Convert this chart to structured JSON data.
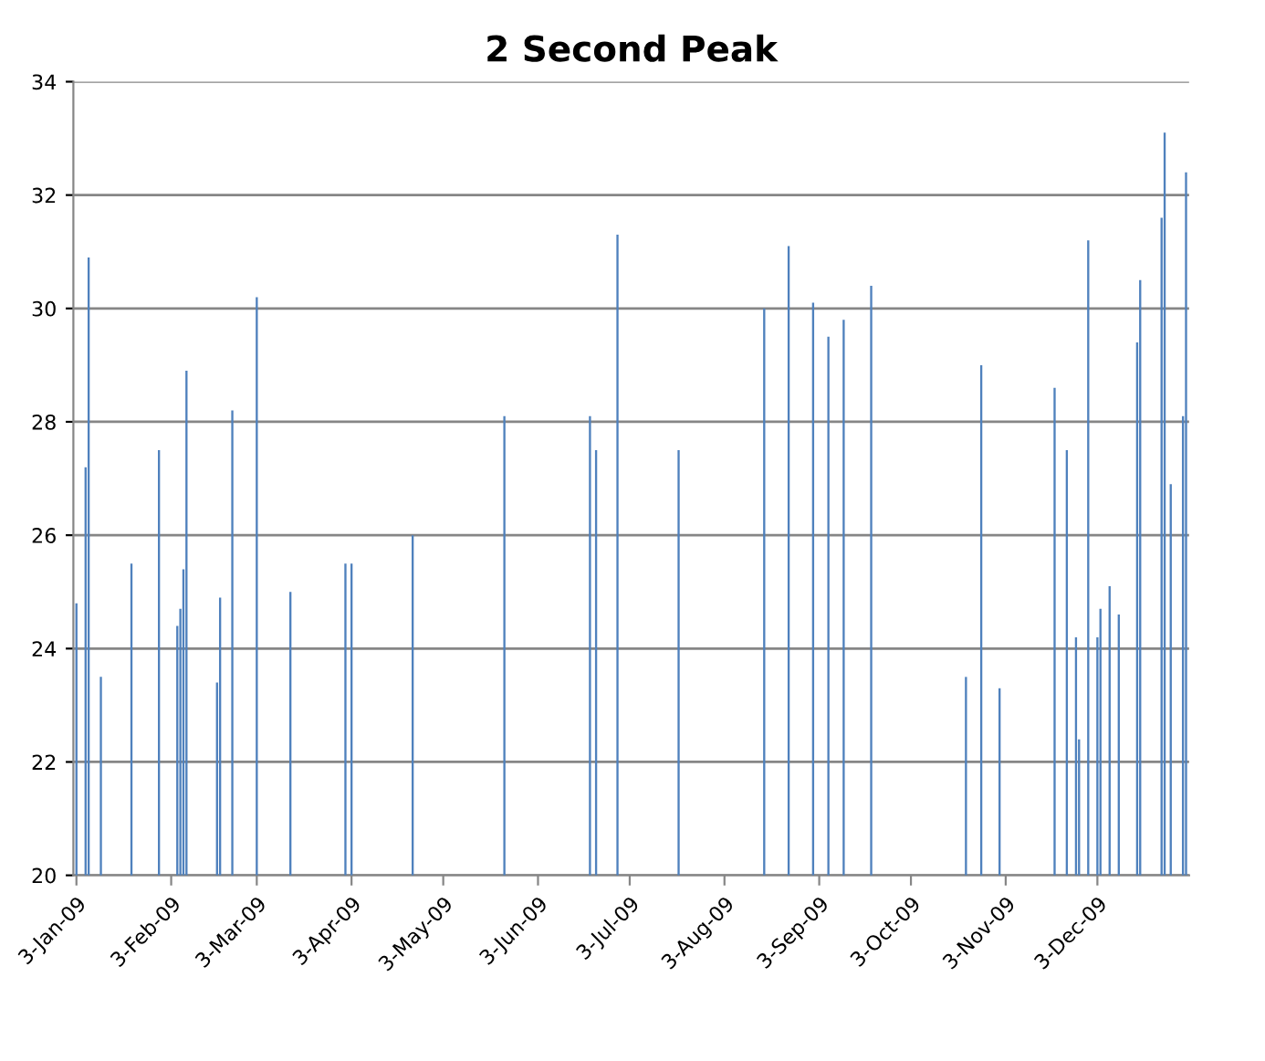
{
  "chart_data": {
    "type": "bar",
    "title": "2 Second Peak",
    "x": [
      "2009-01-03",
      "2009-01-06",
      "2009-01-07",
      "2009-01-11",
      "2009-01-21",
      "2009-01-30",
      "2009-02-05",
      "2009-02-06",
      "2009-02-07",
      "2009-02-08",
      "2009-02-18",
      "2009-02-19",
      "2009-02-23",
      "2009-03-03",
      "2009-03-14",
      "2009-04-01",
      "2009-04-03",
      "2009-04-23",
      "2009-05-23",
      "2009-06-20",
      "2009-06-22",
      "2009-06-29",
      "2009-07-19",
      "2009-08-16",
      "2009-08-24",
      "2009-09-01",
      "2009-09-06",
      "2009-09-11",
      "2009-09-20",
      "2009-10-21",
      "2009-10-26",
      "2009-11-01",
      "2009-11-19",
      "2009-11-23",
      "2009-11-26",
      "2009-11-27",
      "2009-11-30",
      "2009-12-03",
      "2009-12-04",
      "2009-12-07",
      "2009-12-10",
      "2009-12-16",
      "2009-12-17",
      "2009-12-24",
      "2009-12-25",
      "2009-12-27",
      "2009-12-31",
      "2010-01-01"
    ],
    "values": [
      24.8,
      27.2,
      30.9,
      23.5,
      25.5,
      27.5,
      24.4,
      24.7,
      25.4,
      28.9,
      23.4,
      24.9,
      28.2,
      30.2,
      25.0,
      25.5,
      25.5,
      26.0,
      28.1,
      28.1,
      27.5,
      31.3,
      27.5,
      30.0,
      31.1,
      30.1,
      29.5,
      29.8,
      30.4,
      23.5,
      29.0,
      23.3,
      28.6,
      27.5,
      24.2,
      22.4,
      31.2,
      24.2,
      24.7,
      25.1,
      24.6,
      29.4,
      30.5,
      31.6,
      33.1,
      26.9,
      28.1,
      32.4
    ],
    "color": "#4f81bd",
    "xlim": [
      "2009-01-02",
      "2010-01-02"
    ],
    "xticks": [
      {
        "value": "2009-01-03",
        "label": "3-Jan-09"
      },
      {
        "value": "2009-02-03",
        "label": "3-Feb-09"
      },
      {
        "value": "2009-03-03",
        "label": "3-Mar-09"
      },
      {
        "value": "2009-04-03",
        "label": "3-Apr-09"
      },
      {
        "value": "2009-05-03",
        "label": "3-May-09"
      },
      {
        "value": "2009-06-03",
        "label": "3-Jun-09"
      },
      {
        "value": "2009-07-03",
        "label": "3-Jul-09"
      },
      {
        "value": "2009-08-03",
        "label": "3-Aug-09"
      },
      {
        "value": "2009-09-03",
        "label": "3-Sep-09"
      },
      {
        "value": "2009-10-03",
        "label": "3-Oct-09"
      },
      {
        "value": "2009-11-03",
        "label": "3-Nov-09"
      },
      {
        "value": "2009-12-03",
        "label": "3-Dec-09"
      }
    ],
    "ylim": [
      20,
      34
    ],
    "yticks": [
      20,
      22,
      24,
      26,
      28,
      30,
      32,
      34
    ],
    "grid": "y"
  }
}
